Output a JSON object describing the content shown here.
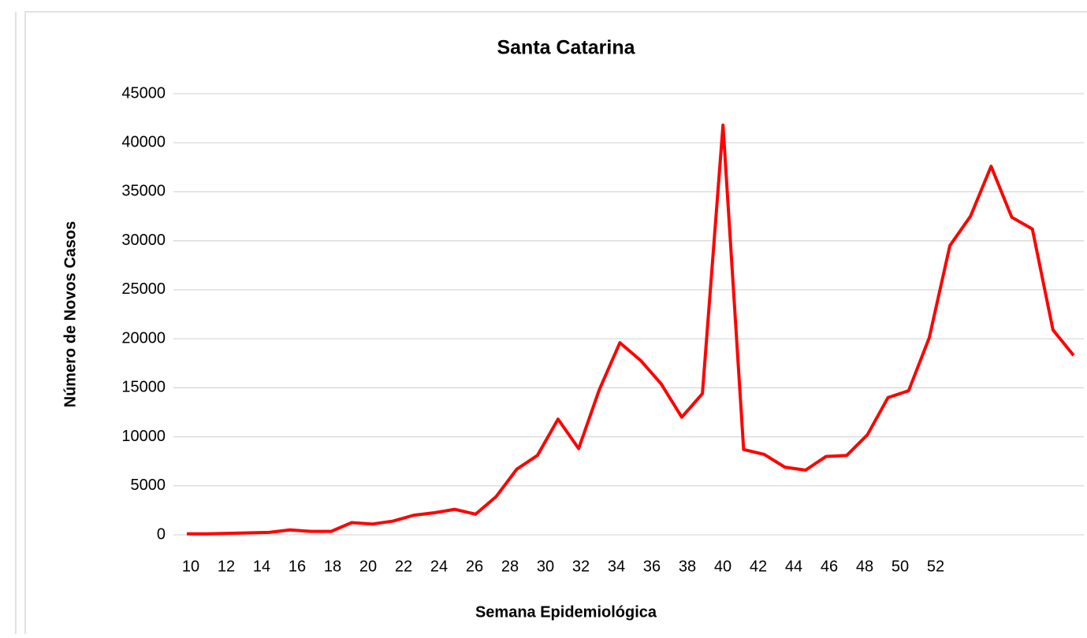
{
  "chart_data": {
    "type": "line",
    "title": "Santa Catarina",
    "x_label": "Semana Epidemiológica",
    "y_label": "Número de Novos Casos",
    "categories": [
      "10",
      null,
      "12",
      null,
      "14",
      null,
      "16",
      null,
      "18",
      null,
      "20",
      null,
      "22",
      null,
      "24",
      null,
      "26",
      null,
      "28",
      null,
      "30",
      null,
      "32",
      null,
      "34",
      null,
      "36",
      null,
      "38",
      null,
      "40",
      null,
      "42",
      null,
      "44",
      null,
      "46",
      null,
      "48",
      null,
      "50",
      null,
      "52",
      null
    ],
    "series": [
      {
        "name": "Santa Catarina",
        "color": "#ff0000",
        "values": [
          100,
          100,
          150,
          200,
          250,
          500,
          350,
          350,
          1250,
          1100,
          1400,
          2000,
          2250,
          2600,
          2100,
          3900,
          6700,
          8100,
          11800,
          8800,
          14800,
          19600,
          17800,
          15400,
          12000,
          14400,
          41800,
          8700,
          8200,
          6900,
          6600,
          8000,
          8100,
          10200,
          14000,
          14700,
          20100,
          29500,
          32500,
          37600,
          32400,
          31200,
          20900,
          18300
        ]
      }
    ],
    "ylim": [
      0,
      45000
    ],
    "yticks": [
      0,
      5000,
      10000,
      15000,
      20000,
      25000,
      30000,
      35000,
      40000,
      45000
    ],
    "grid": true
  }
}
